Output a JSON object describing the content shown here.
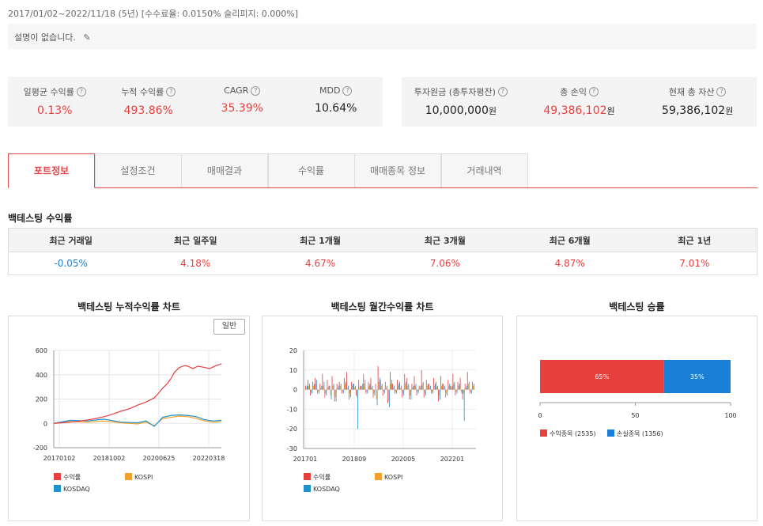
{
  "period": "2017/01/02~2022/11/18 (5년) [수수료율: 0.0150% 슬리피지: 0.000%]",
  "description": "설명이 없습니다.",
  "stats_left": [
    {
      "label": "일평균 수익률",
      "value": "0.13%",
      "color": "red"
    },
    {
      "label": "누적 수익률",
      "value": "493.86%",
      "color": "red"
    },
    {
      "label": "CAGR",
      "value": "35.39%",
      "color": "red"
    },
    {
      "label": "MDD",
      "value": "10.64%",
      "color": "dark"
    }
  ],
  "stats_right": [
    {
      "label": "투자원금 (총투자평잔)",
      "value": "10,000,000",
      "unit": "원",
      "color": "dark"
    },
    {
      "label": "총 손익",
      "value": "49,386,102",
      "unit": "원",
      "color": "red"
    },
    {
      "label": "현재 총 자산",
      "value": "59,386,102",
      "unit": "원",
      "color": "dark"
    }
  ],
  "tabs": [
    "포트정보",
    "설정조건",
    "매매결과",
    "수익률",
    "매매종목 정보",
    "거래내역"
  ],
  "active_tab": 0,
  "section_title": "백테스팅 수익률",
  "returns_table": {
    "headers": [
      "최근 거래일",
      "최근 일주일",
      "최근 1개월",
      "최근 3개월",
      "최근 6개월",
      "최근 1년"
    ],
    "values": [
      "-0.05%",
      "4.18%",
      "4.67%",
      "7.06%",
      "4.87%",
      "7.01%"
    ]
  },
  "colors": {
    "accent": "#e54747",
    "kosdaq": "#1f93c9",
    "kospi": "#f4a12c",
    "ret": "#e83f3f",
    "loss": "#1a7fd6"
  },
  "charts": {
    "cumulative": {
      "title": "백테스팅 누적수익률 차트",
      "button": "일반",
      "legend": [
        "수익률",
        "KOSPI",
        "KOSDAQ"
      ]
    },
    "monthly": {
      "title": "백테스팅 월간수익률 차트",
      "legend": [
        "수익률",
        "KOSPI",
        "KOSDAQ"
      ]
    },
    "winrate": {
      "title": "백테스팅 승률",
      "legend": [
        "수익종목 (2535)",
        "손실종목 (1356)"
      ]
    }
  },
  "chart_data": [
    {
      "type": "line",
      "title": "백테스팅 누적수익률 차트",
      "x_ticks": [
        "20170102",
        "20181002",
        "20200625",
        "20220318"
      ],
      "ylim": [
        -200,
        600
      ],
      "y_ticks": [
        600,
        400,
        200,
        0,
        -200
      ],
      "series": [
        {
          "name": "수익률",
          "x": [
            0,
            0.05,
            0.1,
            0.15,
            0.2,
            0.25,
            0.3,
            0.35,
            0.4,
            0.45,
            0.5,
            0.55,
            0.6,
            0.62,
            0.65,
            0.68,
            0.7,
            0.72,
            0.75,
            0.78,
            0.8,
            0.83,
            0.86,
            0.9,
            0.93,
            0.96,
            1.0
          ],
          "values": [
            0,
            5,
            10,
            18,
            28,
            40,
            55,
            75,
            100,
            120,
            150,
            175,
            210,
            240,
            290,
            330,
            370,
            420,
            460,
            475,
            470,
            450,
            470,
            460,
            450,
            470,
            490
          ]
        },
        {
          "name": "KOSPI",
          "x": [
            0,
            0.1,
            0.2,
            0.3,
            0.4,
            0.5,
            0.55,
            0.6,
            0.65,
            0.7,
            0.75,
            0.8,
            0.85,
            0.9,
            0.95,
            1.0
          ],
          "values": [
            0,
            15,
            10,
            20,
            5,
            -5,
            10,
            -20,
            40,
            50,
            60,
            55,
            40,
            20,
            10,
            15
          ]
        },
        {
          "name": "KOSDAQ",
          "x": [
            0,
            0.1,
            0.2,
            0.3,
            0.4,
            0.5,
            0.55,
            0.6,
            0.65,
            0.7,
            0.75,
            0.8,
            0.85,
            0.9,
            0.95,
            1.0
          ],
          "values": [
            0,
            25,
            20,
            35,
            10,
            5,
            20,
            -25,
            50,
            65,
            70,
            65,
            55,
            30,
            20,
            25
          ]
        }
      ]
    },
    {
      "type": "bar",
      "title": "백테스팅 월간수익률 차트",
      "x_ticks": [
        "201701",
        "201809",
        "202005",
        "202201"
      ],
      "ylim": [
        -30,
        20
      ],
      "y_ticks": [
        20,
        10,
        0,
        -10,
        -20,
        -30
      ],
      "series": [
        {
          "name": "수익률",
          "values": [
            2,
            5,
            -3,
            4,
            6,
            -2,
            3,
            8,
            -4,
            5,
            2,
            7,
            -6,
            3,
            4,
            -2,
            6,
            9,
            -5,
            4,
            3,
            -3,
            5,
            2,
            8,
            -2,
            4,
            6,
            -4,
            3,
            12,
            5,
            -3,
            4,
            -7,
            9,
            3,
            -2,
            5,
            4,
            -4,
            8,
            6,
            -5,
            3,
            7,
            -3,
            2,
            10,
            -4,
            5,
            3,
            -2,
            6,
            4,
            -6,
            7,
            3,
            -4,
            5,
            2,
            8,
            -3,
            4,
            6,
            -5,
            3,
            9,
            -2,
            4
          ]
        },
        {
          "name": "KOSPI",
          "values": [
            1,
            2,
            -1,
            2,
            3,
            -1,
            1,
            2,
            -2,
            1,
            -3,
            2,
            -4,
            1,
            2,
            -1,
            3,
            1,
            -2,
            2,
            1,
            -4,
            1,
            2,
            3,
            -1,
            2,
            1,
            -2,
            -5,
            4,
            2,
            -1,
            1,
            -6,
            3,
            1,
            -1,
            2,
            1,
            -2,
            3,
            2,
            -3,
            1,
            2,
            -1,
            1,
            3,
            -2,
            2,
            1,
            -1,
            2,
            1,
            -3,
            2,
            1,
            -2,
            2,
            1,
            3,
            -1,
            2,
            -1,
            -2,
            1,
            3,
            -1,
            2
          ]
        },
        {
          "name": "KOSDAQ",
          "values": [
            2,
            3,
            -2,
            3,
            5,
            -2,
            2,
            4,
            -3,
            2,
            -5,
            3,
            -6,
            2,
            3,
            -2,
            4,
            2,
            -4,
            3,
            2,
            -20,
            2,
            3,
            5,
            -2,
            3,
            2,
            -3,
            -8,
            6,
            3,
            -2,
            2,
            -9,
            5,
            2,
            -2,
            3,
            2,
            -3,
            4,
            3,
            -5,
            2,
            3,
            -2,
            2,
            4,
            -3,
            3,
            2,
            -2,
            3,
            2,
            -5,
            3,
            2,
            -3,
            3,
            2,
            4,
            -2,
            3,
            -2,
            -16,
            2,
            4,
            -2,
            3
          ]
        }
      ]
    },
    {
      "type": "bar",
      "title": "백테스팅 승률",
      "categories": [
        "수익종목 (2535)",
        "손실종목 (1356)"
      ],
      "values": [
        65,
        35
      ],
      "data_labels": [
        "65%",
        "35%"
      ],
      "xlim": [
        0,
        100
      ],
      "x_ticks": [
        0,
        50,
        100
      ]
    }
  ]
}
